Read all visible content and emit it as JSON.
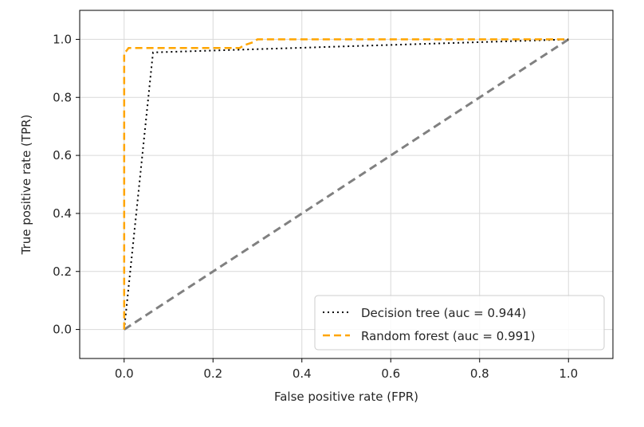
{
  "chart_data": {
    "type": "line",
    "title": "",
    "xlabel": "False positive rate (FPR)",
    "ylabel": "True positive rate (TPR)",
    "xlim": [
      -0.1,
      1.1
    ],
    "ylim": [
      -0.1,
      1.1
    ],
    "xticks": [
      0.0,
      0.2,
      0.4,
      0.6,
      0.8,
      1.0
    ],
    "xtick_labels": [
      "0.0",
      "0.2",
      "0.4",
      "0.6",
      "0.8",
      "1.0"
    ],
    "yticks": [
      0.0,
      0.2,
      0.4,
      0.6,
      0.8,
      1.0
    ],
    "ytick_labels": [
      "0.0",
      "0.2",
      "0.4",
      "0.6",
      "0.8",
      "1.0"
    ],
    "grid": true,
    "legend_position": "lower-right",
    "series": [
      {
        "name": "Decision tree (auc = 0.944)",
        "style": "dotted",
        "color": "#000000",
        "x": [
          0.0,
          0.065,
          1.0
        ],
        "y": [
          0.0,
          0.955,
          1.0
        ]
      },
      {
        "name": "Random forest (auc = 0.991)",
        "style": "dashed",
        "color": "#ffa500",
        "x": [
          0.0,
          0.0,
          0.005,
          0.01,
          0.26,
          0.27,
          0.29,
          0.3,
          1.0
        ],
        "y": [
          0.0,
          0.955,
          0.96,
          0.97,
          0.97,
          0.98,
          0.99,
          1.0,
          1.0
        ]
      },
      {
        "style": "dashed",
        "color": "#808080",
        "x": [
          0.0,
          1.0
        ],
        "y": [
          0.0,
          1.0
        ]
      }
    ]
  }
}
